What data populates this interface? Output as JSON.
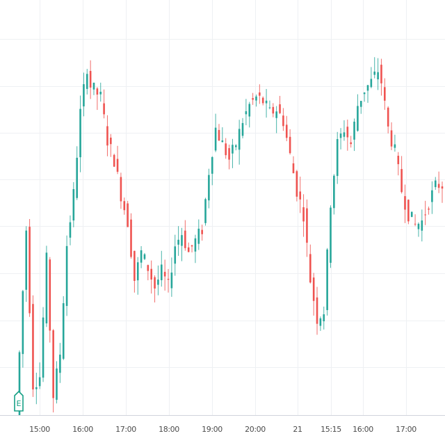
{
  "colors": {
    "up": "#26a69a",
    "down": "#ef5350",
    "grid": "#eef0f3",
    "axis_line": "#d1d4dc",
    "tick_text": "#4a4a4a",
    "badge": "#16a085"
  },
  "earnings_badge": {
    "label": "E",
    "icon": "earnings-event-icon"
  },
  "chart_data": {
    "type": "candlestick",
    "title": "",
    "xlabel": "",
    "ylabel": "",
    "grid": true,
    "legend": "none",
    "x_tick_labels": [
      "15:00",
      "16:00",
      "17:00",
      "18:00",
      "19:00",
      "20:00",
      "21",
      "15:15",
      "16:00",
      "17:00"
    ],
    "ylim": [
      0,
      100
    ],
    "anchors": [
      [
        0,
        0
      ],
      [
        3,
        48
      ],
      [
        5,
        8
      ],
      [
        7,
        10
      ],
      [
        9,
        40
      ],
      [
        11,
        5
      ],
      [
        13,
        16
      ],
      [
        15,
        44
      ],
      [
        17,
        57
      ],
      [
        19,
        78
      ],
      [
        21,
        90
      ],
      [
        22,
        85
      ],
      [
        25,
        82
      ],
      [
        27,
        71
      ],
      [
        29,
        66
      ],
      [
        31,
        57
      ],
      [
        33,
        50
      ],
      [
        35,
        35
      ],
      [
        37,
        42
      ],
      [
        39,
        38
      ],
      [
        41,
        33
      ],
      [
        43,
        37
      ],
      [
        45,
        33
      ],
      [
        47,
        44
      ],
      [
        49,
        47
      ],
      [
        51,
        42
      ],
      [
        53,
        45
      ],
      [
        55,
        48
      ],
      [
        57,
        63
      ],
      [
        59,
        74
      ],
      [
        61,
        70
      ],
      [
        63,
        66
      ],
      [
        65,
        70
      ],
      [
        67,
        76
      ],
      [
        69,
        80
      ],
      [
        71,
        82
      ],
      [
        73,
        81
      ],
      [
        75,
        78
      ],
      [
        77,
        79
      ],
      [
        79,
        76
      ],
      [
        81,
        67
      ],
      [
        83,
        58
      ],
      [
        84,
        55
      ],
      [
        85,
        52
      ],
      [
        87,
        35
      ],
      [
        89,
        25
      ],
      [
        91,
        27
      ],
      [
        93,
        55
      ],
      [
        95,
        70
      ],
      [
        97,
        74
      ],
      [
        99,
        70
      ],
      [
        101,
        80
      ],
      [
        103,
        84
      ],
      [
        105,
        86
      ],
      [
        107,
        89
      ],
      [
        108,
        86
      ],
      [
        110,
        74
      ],
      [
        112,
        68
      ],
      [
        114,
        58
      ],
      [
        116,
        52
      ],
      [
        118,
        49
      ],
      [
        120,
        50
      ],
      [
        122,
        55
      ],
      [
        124,
        59
      ],
      [
        126,
        60
      ]
    ],
    "seed": 7
  }
}
